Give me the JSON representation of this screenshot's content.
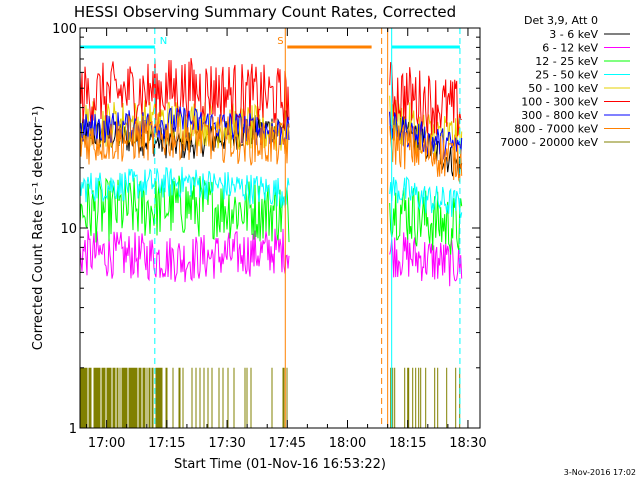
{
  "chart_data": {
    "type": "line",
    "title": "HESSI Observing Summary Count Rates, Corrected",
    "ylabel": "Corrected Count Rate (s⁻¹ detector⁻¹)",
    "xlabel": "Start Time (01-Nov-16 16:53:22)",
    "yscale": "log",
    "ylim": [
      1,
      100
    ],
    "xlim": [
      "16:53:22",
      "18:33:00"
    ],
    "y_ticks": [
      "1",
      "10",
      "100"
    ],
    "x_ticks": [
      "17:00",
      "17:15",
      "17:30",
      "17:45",
      "18:00",
      "18:15",
      "18:30"
    ],
    "legend_title": "Det 3,9, Att 0",
    "legend_position": "right",
    "series": [
      {
        "name": "3 - 6 keV",
        "color": "#000000",
        "level_segments": [
          [
            30,
            26,
            33
          ],
          [
            33,
            26,
            20
          ]
        ]
      },
      {
        "name": "6 - 12 keV",
        "color": "#ff00ff",
        "level_segments": [
          [
            7.5,
            7,
            7.8
          ],
          [
            7.5,
            7,
            6.5
          ]
        ]
      },
      {
        "name": "12 - 25 keV",
        "color": "#00ff00",
        "level_segments": [
          [
            12,
            13,
            12
          ],
          [
            13,
            11,
            10
          ]
        ]
      },
      {
        "name": "25 - 50 keV",
        "color": "#00ffff",
        "level_segments": [
          [
            16,
            17,
            15
          ],
          [
            16,
            14,
            13
          ]
        ]
      },
      {
        "name": "50 - 100 keV",
        "color": "#e6d200",
        "level_segments": [
          [
            33,
            34,
            30
          ],
          [
            35,
            30,
            28
          ]
        ]
      },
      {
        "name": "100 - 300 keV",
        "color": "#ff0000",
        "level_segments": [
          [
            46,
            50,
            44
          ],
          [
            48,
            43,
            38
          ]
        ]
      },
      {
        "name": "300 - 800 keV",
        "color": "#0000ff",
        "level_segments": [
          [
            31,
            34,
            30
          ],
          [
            32,
            28,
            25
          ]
        ]
      },
      {
        "name": "800 - 7000 keV",
        "color": "#ff8000",
        "level_segments": [
          [
            27,
            29,
            26
          ],
          [
            27,
            24,
            22
          ]
        ]
      },
      {
        "name": "7000 - 20000 keV",
        "color": "#808000",
        "level_segments": [
          [
            1.5,
            1.5,
            1.5
          ],
          [
            1.5,
            1.5,
            1.5
          ]
        ]
      }
    ],
    "segments_time": [
      [
        "16:53:22",
        "17:45:30"
      ],
      [
        "18:10:30",
        "18:28:30"
      ]
    ],
    "flags": [
      {
        "label": "N",
        "color": "#00ffff",
        "start": "16:53:22",
        "end": "17:12:00"
      },
      {
        "label": "S",
        "color": "#ff8000",
        "start": "17:45:00",
        "end": "18:06:00"
      },
      {
        "label": "",
        "color": "#00ffff",
        "start": "18:11:00",
        "end": "18:28:00"
      }
    ],
    "vertical_markers": [
      {
        "time": "17:12:00",
        "color": "#00ffff",
        "style": "dashed"
      },
      {
        "time": "17:44:30",
        "color": "#ff8000",
        "style": "solid"
      },
      {
        "time": "18:08:30",
        "color": "#ff8000",
        "style": "dashed"
      },
      {
        "time": "18:10:00",
        "color": "#ff8000",
        "style": "solid"
      },
      {
        "time": "18:11:00",
        "color": "#00ffff",
        "style": "solid"
      },
      {
        "time": "18:28:00",
        "color": "#00ffff",
        "style": "dashed"
      }
    ]
  },
  "footer": {
    "timestamp": "3-Nov-2016 17:02"
  }
}
